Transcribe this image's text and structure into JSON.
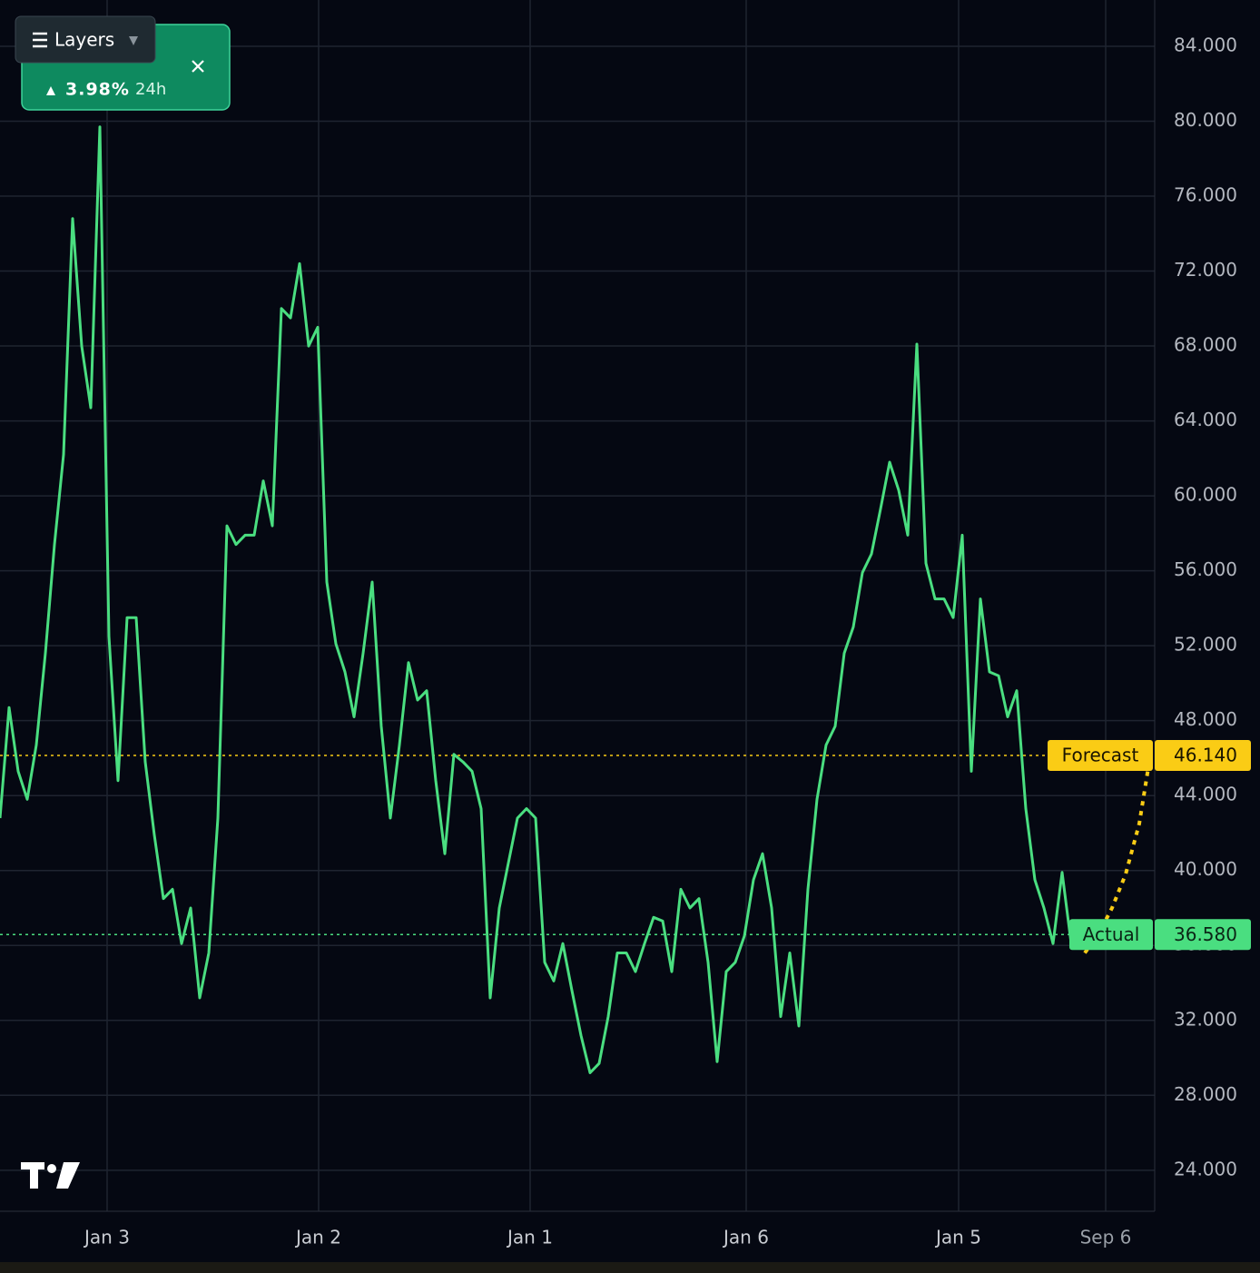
{
  "ui": {
    "layers_button": "Layers",
    "ticker_card": {
      "change": "3.98%",
      "period": "24h"
    }
  },
  "chart_data": {
    "type": "line",
    "xlim": [
      0,
      127.2
    ],
    "xticks": [
      {
        "value": 11.8,
        "label": "Jan 3"
      },
      {
        "value": 35.1,
        "label": "Jan 2"
      },
      {
        "value": 58.4,
        "label": "Jan 1"
      },
      {
        "value": 82.2,
        "label": "Jan 6"
      },
      {
        "value": 105.6,
        "label": "Jan 5"
      },
      {
        "value": 121.8,
        "label": "Sep 6"
      }
    ],
    "ylim": [
      21.81,
      86.47
    ],
    "yticks": [
      {
        "value": 24,
        "label": "24.000"
      },
      {
        "value": 28,
        "label": "28.000"
      },
      {
        "value": 32,
        "label": "32.000"
      },
      {
        "value": 36,
        "label": "36.000"
      },
      {
        "value": 40,
        "label": "40.000"
      },
      {
        "value": 44,
        "label": "44.000"
      },
      {
        "value": 48,
        "label": "48.000"
      },
      {
        "value": 52,
        "label": "52.000"
      },
      {
        "value": 56,
        "label": "56.000"
      },
      {
        "value": 60,
        "label": "60.000"
      },
      {
        "value": 64,
        "label": "64.000"
      },
      {
        "value": 68,
        "label": "68.000"
      },
      {
        "value": 72,
        "label": "72.000"
      },
      {
        "value": 76,
        "label": "76.000"
      },
      {
        "value": 80,
        "label": "80.000"
      },
      {
        "value": 84,
        "label": "84.000"
      }
    ],
    "grid": true,
    "series": [
      {
        "color": "#4ade80",
        "x": [
          0,
          1,
          2,
          3,
          4,
          5,
          6,
          7,
          8,
          9,
          10,
          11,
          12,
          13,
          14,
          15,
          16,
          17,
          18,
          19,
          20,
          21,
          22,
          23,
          24,
          25,
          26,
          27,
          28,
          29,
          30,
          31,
          32,
          33,
          34,
          35,
          36,
          37,
          38,
          39,
          40,
          41,
          42,
          43,
          44,
          45,
          46,
          47,
          48,
          49,
          50,
          51,
          52,
          53,
          54,
          55,
          56,
          57,
          58,
          59,
          60,
          61,
          62,
          63,
          64,
          65,
          66,
          67,
          68,
          69,
          70,
          71,
          72,
          73,
          74,
          75,
          76,
          77,
          78,
          79,
          80,
          81,
          82,
          83,
          84,
          85,
          86,
          87,
          88,
          89,
          90,
          91,
          92,
          93,
          94,
          95,
          96,
          97,
          98,
          99,
          100,
          101,
          102,
          103,
          104,
          105,
          106,
          107,
          108,
          109,
          110,
          111,
          112,
          113,
          114,
          115,
          116,
          117,
          118
        ],
        "values": [
          42.8,
          48.7,
          45.3,
          43.8,
          46.7,
          51.6,
          57.4,
          62.2,
          74.8,
          68.0,
          64.7,
          79.7,
          52.5,
          44.8,
          53.5,
          53.5,
          45.8,
          41.9,
          38.5,
          39.0,
          36.1,
          38.0,
          33.2,
          35.6,
          42.8,
          58.4,
          57.4,
          57.9,
          57.9,
          60.8,
          58.4,
          70.0,
          69.5,
          72.4,
          68.0,
          69.0,
          55.4,
          52.1,
          50.6,
          48.2,
          51.6,
          55.4,
          47.7,
          42.8,
          46.7,
          51.1,
          49.1,
          49.6,
          44.8,
          40.9,
          46.2,
          45.8,
          45.3,
          43.3,
          33.2,
          38.0,
          40.4,
          42.8,
          43.3,
          42.8,
          35.1,
          34.1,
          36.1,
          33.6,
          31.2,
          29.2,
          29.7,
          32.2,
          35.6,
          35.6,
          34.6,
          36.1,
          37.5,
          37.3,
          34.6,
          39.0,
          38.0,
          38.5,
          35.1,
          29.8,
          34.6,
          35.1,
          36.5,
          39.5,
          40.9,
          38.0,
          32.2,
          35.6,
          31.7,
          39.0,
          43.8,
          46.7,
          47.7,
          51.6,
          53.0,
          55.9,
          56.9,
          59.3,
          61.8,
          60.3,
          57.9,
          68.1,
          56.4,
          54.5,
          54.5,
          53.5,
          57.9,
          45.3,
          54.5,
          50.6,
          50.4,
          48.2,
          49.6,
          43.3,
          39.5,
          38.0,
          36.1,
          39.9,
          36.1
        ]
      },
      {
        "color": "#facc15",
        "dashed": true,
        "x": [
          119.5,
          121,
          122.5,
          124,
          125.5,
          126.5
        ],
        "values": [
          35.6,
          36.6,
          38.0,
          39.8,
          42.5,
          45.5
        ]
      }
    ],
    "price_lines": [
      {
        "label": "Forecast",
        "value": 46.14,
        "value_label": "46.140",
        "color": "#facc15",
        "text_color": "#1a1400"
      },
      {
        "label": "Actual",
        "value": 36.58,
        "value_label": "36.580",
        "color": "#4ade80",
        "text_color": "#0b2415"
      }
    ]
  }
}
